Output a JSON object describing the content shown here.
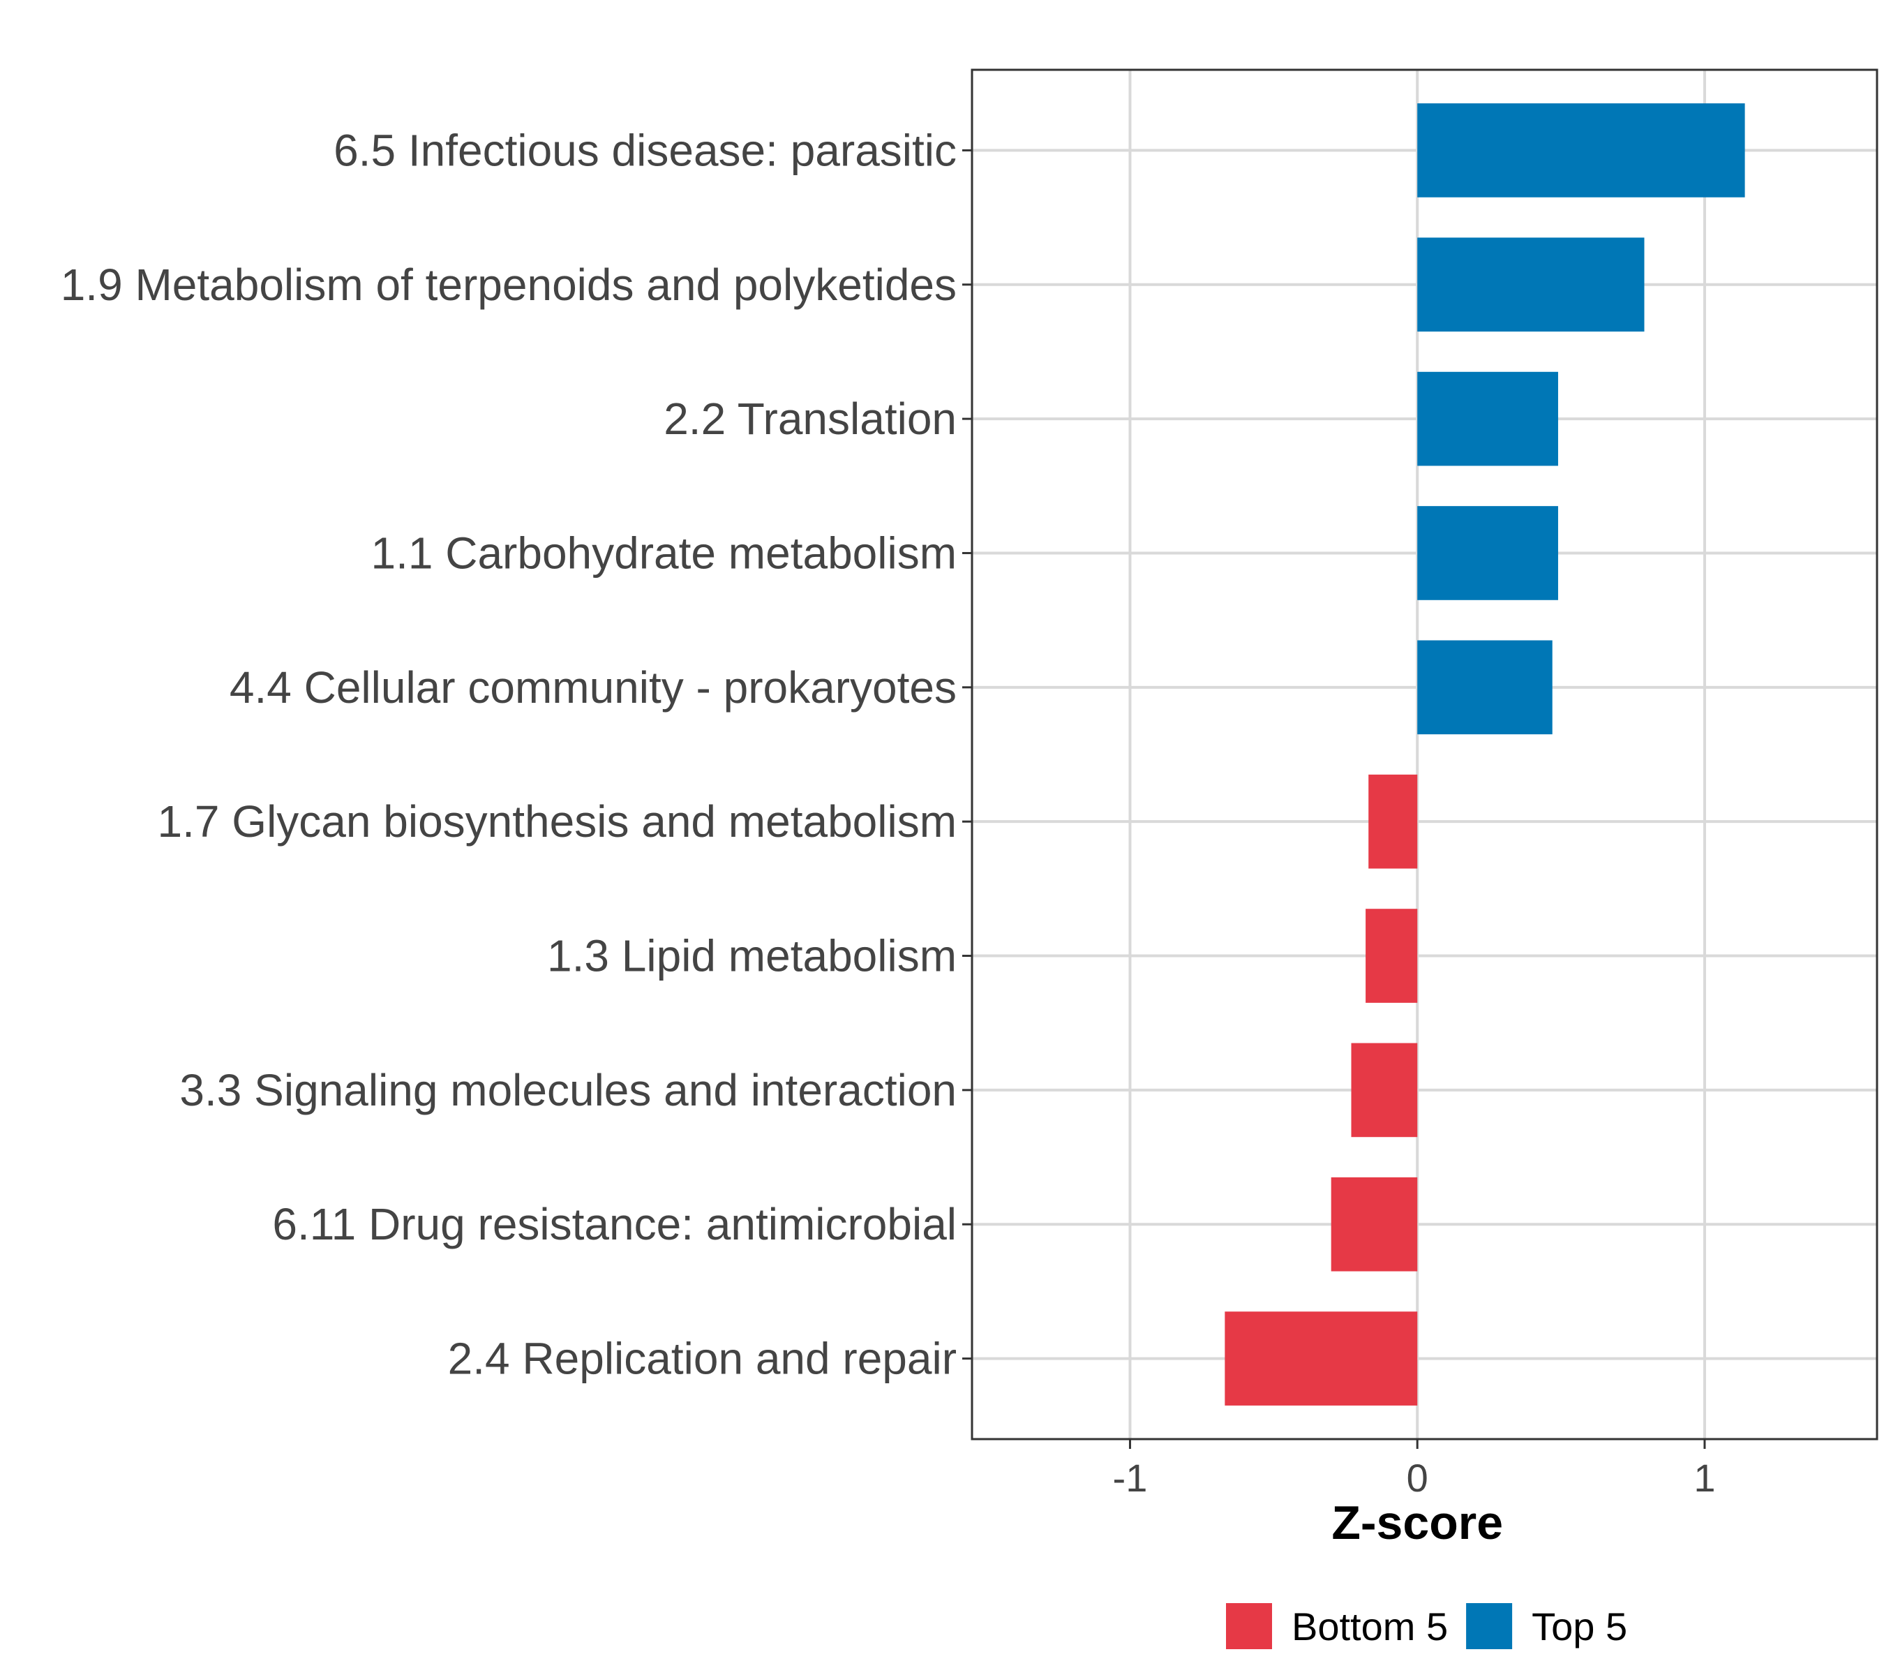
{
  "chart_data": {
    "type": "bar",
    "orientation": "horizontal",
    "title": "",
    "xlabel": "Z-score",
    "ylabel": "",
    "xlim": [
      -1.55,
      1.6
    ],
    "xticks": [
      -1,
      0,
      1
    ],
    "xtick_labels": [
      "-1",
      "0",
      "1"
    ],
    "grid": true,
    "legend_position": "bottom",
    "categories": [
      "6.5 Infectious disease: parasitic",
      "1.9 Metabolism of terpenoids and polyketides",
      "2.2 Translation",
      "1.1 Carbohydrate metabolism",
      "4.4 Cellular community - prokaryotes",
      "1.7 Glycan biosynthesis and metabolism",
      "1.3 Lipid metabolism",
      "3.3 Signaling molecules and interaction",
      "6.11 Drug resistance: antimicrobial",
      "2.4 Replication and repair"
    ],
    "values": [
      1.14,
      0.79,
      0.49,
      0.49,
      0.47,
      -0.17,
      -0.18,
      -0.23,
      -0.3,
      -0.67
    ],
    "groups": [
      "Top 5",
      "Top 5",
      "Top 5",
      "Top 5",
      "Top 5",
      "Bottom 5",
      "Bottom 5",
      "Bottom 5",
      "Bottom 5",
      "Bottom 5"
    ],
    "legend": [
      {
        "label": "Bottom 5",
        "color": "#e63946"
      },
      {
        "label": "Top 5",
        "color": "#0077b6"
      }
    ]
  }
}
